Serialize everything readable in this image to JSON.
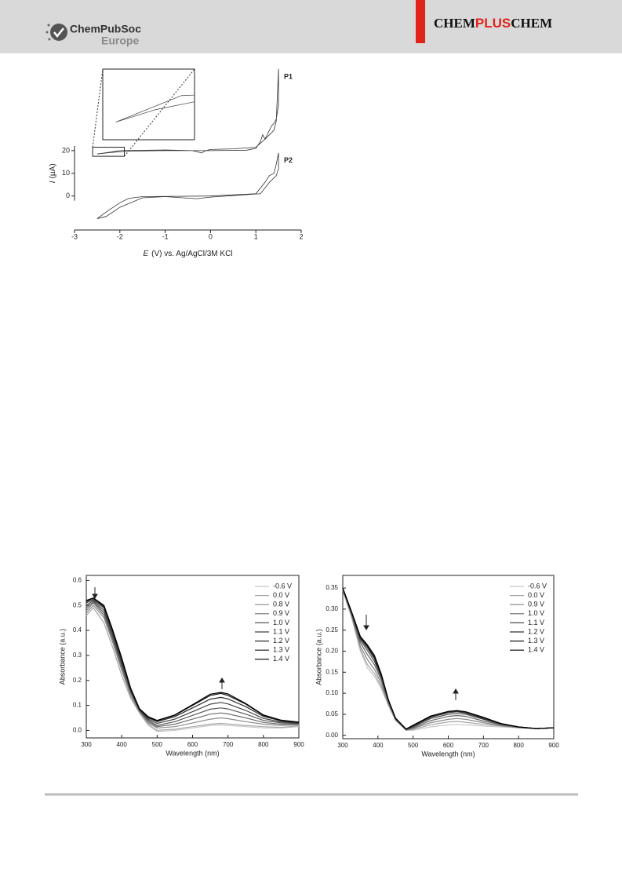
{
  "header": {
    "society": "ChemPubSoc",
    "region": "Europe",
    "journal": [
      "CHEM",
      "PLUS",
      "CHEM"
    ]
  },
  "chart_data": [
    {
      "type": "line",
      "frame": "open",
      "xlabel": [
        "E",
        "(V) vs. Ag/AgCl/3M KCl"
      ],
      "ylabel": [
        "I",
        "(µA)"
      ],
      "xlim": [
        -3,
        2
      ],
      "ylim": [
        -15,
        57
      ],
      "xticks": [
        -3,
        -2,
        -1,
        0,
        1,
        2
      ],
      "yticks": [
        0,
        10,
        20
      ],
      "inset": {
        "xlim": [
          -2.6,
          -1.9
        ],
        "ylim": [
          17.5,
          21.5
        ]
      },
      "series": [
        {
          "name": "P1",
          "color": "#333333",
          "x": [
            -2.5,
            -2.2,
            -1.8,
            -1.0,
            0,
            0.8,
            1.0,
            1.1,
            1.15,
            1.2,
            1.3,
            1.4,
            1.45,
            1.5,
            1.5,
            1.45,
            1.4,
            1.35,
            1.2,
            1.0,
            0.5,
            0,
            -0.1,
            -0.2,
            -0.3,
            -0.4,
            -1.0,
            -2.0,
            -2.5
          ],
          "values": [
            18.5,
            19.2,
            19.8,
            20,
            20,
            20.2,
            21,
            24,
            27,
            25,
            27,
            29,
            33,
            56,
            40,
            34,
            32,
            31,
            25,
            21.5,
            20.8,
            20.5,
            20,
            19,
            19.5,
            20,
            20.3,
            20,
            18.5
          ]
        },
        {
          "name": "P2",
          "color": "#333333",
          "x": [
            -2.5,
            -2.3,
            -2.0,
            -1.8,
            -1.5,
            0,
            1.0,
            1.2,
            1.3,
            1.4,
            1.45,
            1.5,
            1.5,
            1.45,
            1.3,
            1.1,
            0,
            -0.3,
            -1.0,
            -1.5,
            -2.0,
            -2.3,
            -2.5
          ],
          "values": [
            -10,
            -7,
            -3,
            -1,
            -0.3,
            0,
            1,
            6,
            9,
            10,
            14,
            19,
            12,
            9,
            6,
            1,
            -0.5,
            -1.2,
            -0.3,
            -0.8,
            -5,
            -9,
            -10
          ]
        }
      ]
    },
    {
      "type": "line",
      "frame": "box",
      "legend": "upper right",
      "xlabel": "Wavelength (nm)",
      "ylabel": "Absorbance (a.u.)",
      "xlim": [
        300,
        900
      ],
      "ylim": [
        -0.03,
        0.62
      ],
      "xticks": [
        300,
        400,
        500,
        600,
        700,
        800,
        900
      ],
      "yticks": [
        {
          "value": 0,
          "label": "0.0"
        },
        0.1,
        0.2,
        0.3,
        0.4,
        0.5,
        0.6
      ],
      "x": [
        300,
        320,
        350,
        375,
        400,
        425,
        450,
        475,
        500,
        550,
        600,
        650,
        680,
        700,
        750,
        800,
        850,
        900
      ],
      "series": [
        {
          "name": "-0.6 V",
          "color": "#c8c8c8",
          "values": [
            0.46,
            0.49,
            0.43,
            0.33,
            0.22,
            0.13,
            0.07,
            0.02,
            -0.005,
            0.0,
            0.01,
            0.02,
            0.022,
            0.02,
            0.015,
            0.01,
            0.01,
            0.015
          ]
        },
        {
          "name": "0.0 V",
          "color": "#a8a8a8",
          "values": [
            0.46,
            0.49,
            0.43,
            0.33,
            0.22,
            0.13,
            0.07,
            0.025,
            0.0,
            0.005,
            0.015,
            0.025,
            0.028,
            0.026,
            0.02,
            0.015,
            0.012,
            0.018
          ]
        },
        {
          "name": "0.8 V",
          "color": "#8c8c8c",
          "values": [
            0.47,
            0.5,
            0.45,
            0.35,
            0.24,
            0.14,
            0.075,
            0.03,
            0.01,
            0.015,
            0.03,
            0.045,
            0.05,
            0.047,
            0.035,
            0.025,
            0.02,
            0.022
          ]
        },
        {
          "name": "0.9 V",
          "color": "#707070",
          "values": [
            0.48,
            0.51,
            0.46,
            0.36,
            0.25,
            0.15,
            0.078,
            0.035,
            0.015,
            0.025,
            0.045,
            0.065,
            0.07,
            0.066,
            0.05,
            0.032,
            0.025,
            0.025
          ]
        },
        {
          "name": "1.0 V",
          "color": "#585858",
          "values": [
            0.49,
            0.515,
            0.47,
            0.37,
            0.26,
            0.155,
            0.08,
            0.04,
            0.02,
            0.035,
            0.06,
            0.085,
            0.09,
            0.086,
            0.065,
            0.04,
            0.03,
            0.027
          ]
        },
        {
          "name": "1.1 V",
          "color": "#404040",
          "values": [
            0.5,
            0.52,
            0.48,
            0.38,
            0.27,
            0.16,
            0.082,
            0.045,
            0.028,
            0.045,
            0.075,
            0.105,
            0.112,
            0.106,
            0.08,
            0.048,
            0.034,
            0.029
          ]
        },
        {
          "name": "1.2 V",
          "color": "#2a2a2a",
          "values": [
            0.51,
            0.525,
            0.49,
            0.39,
            0.28,
            0.165,
            0.085,
            0.05,
            0.035,
            0.055,
            0.09,
            0.125,
            0.132,
            0.126,
            0.095,
            0.056,
            0.038,
            0.031
          ]
        },
        {
          "name": "1.3 V",
          "color": "#151515",
          "values": [
            0.515,
            0.53,
            0.495,
            0.395,
            0.285,
            0.168,
            0.086,
            0.053,
            0.038,
            0.06,
            0.1,
            0.14,
            0.148,
            0.14,
            0.105,
            0.06,
            0.04,
            0.032
          ]
        },
        {
          "name": "1.4 V",
          "color": "#000000",
          "values": [
            0.52,
            0.53,
            0.5,
            0.4,
            0.29,
            0.17,
            0.087,
            0.055,
            0.04,
            0.062,
            0.103,
            0.145,
            0.152,
            0.146,
            0.108,
            0.062,
            0.041,
            0.033
          ]
        }
      ]
    },
    {
      "type": "line",
      "frame": "box",
      "legend": "upper right",
      "xlabel": "Wavelength (nm)",
      "ylabel": "Absorbance (a.u.)",
      "xlim": [
        300,
        900
      ],
      "ylim": [
        -0.008,
        0.38
      ],
      "xticks": [
        300,
        400,
        500,
        600,
        700,
        800,
        900
      ],
      "yticks": [
        {
          "value": 0,
          "label": "0.00"
        },
        0.05,
        {
          "value": 0.1,
          "label": "0.10"
        },
        0.15,
        {
          "value": 0.2,
          "label": "0.20"
        },
        0.25,
        {
          "value": 0.3,
          "label": "0.30"
        },
        0.35
      ],
      "x": [
        300,
        325,
        350,
        370,
        390,
        410,
        430,
        450,
        480,
        500,
        550,
        600,
        625,
        650,
        700,
        750,
        800,
        850,
        900
      ],
      "series": [
        {
          "name": "-0.6 V",
          "color": "#c8c8c8",
          "values": [
            0.345,
            0.28,
            0.2,
            0.16,
            0.14,
            0.11,
            0.07,
            0.035,
            0.012,
            0.012,
            0.02,
            0.025,
            0.026,
            0.025,
            0.022,
            0.02,
            0.018,
            0.016,
            0.018
          ]
        },
        {
          "name": "0.0 V",
          "color": "#a4a4a4",
          "values": [
            0.345,
            0.282,
            0.205,
            0.168,
            0.147,
            0.115,
            0.072,
            0.036,
            0.012,
            0.014,
            0.025,
            0.032,
            0.033,
            0.031,
            0.026,
            0.022,
            0.018,
            0.016,
            0.018
          ]
        },
        {
          "name": "0.9 V",
          "color": "#848484",
          "values": [
            0.346,
            0.285,
            0.212,
            0.18,
            0.157,
            0.122,
            0.075,
            0.037,
            0.013,
            0.016,
            0.03,
            0.038,
            0.04,
            0.038,
            0.03,
            0.023,
            0.019,
            0.016,
            0.018
          ]
        },
        {
          "name": "1.0 V",
          "color": "#666666",
          "values": [
            0.347,
            0.288,
            0.22,
            0.192,
            0.168,
            0.13,
            0.078,
            0.038,
            0.013,
            0.018,
            0.035,
            0.045,
            0.047,
            0.045,
            0.034,
            0.025,
            0.019,
            0.016,
            0.018
          ]
        },
        {
          "name": "1.1 V",
          "color": "#4a4a4a",
          "values": [
            0.348,
            0.29,
            0.226,
            0.202,
            0.176,
            0.136,
            0.08,
            0.039,
            0.014,
            0.02,
            0.04,
            0.05,
            0.052,
            0.05,
            0.038,
            0.026,
            0.02,
            0.016,
            0.018
          ]
        },
        {
          "name": "1.2 V",
          "color": "#303030",
          "values": [
            0.349,
            0.292,
            0.23,
            0.208,
            0.182,
            0.14,
            0.082,
            0.04,
            0.014,
            0.022,
            0.043,
            0.054,
            0.056,
            0.053,
            0.04,
            0.027,
            0.02,
            0.016,
            0.018
          ]
        },
        {
          "name": "1.3 V",
          "color": "#181818",
          "values": [
            0.35,
            0.293,
            0.233,
            0.212,
            0.186,
            0.142,
            0.083,
            0.04,
            0.015,
            0.023,
            0.045,
            0.056,
            0.058,
            0.055,
            0.042,
            0.028,
            0.02,
            0.016,
            0.018
          ]
        },
        {
          "name": "1.4 V",
          "color": "#000000",
          "values": [
            0.35,
            0.294,
            0.235,
            0.215,
            0.19,
            0.145,
            0.084,
            0.041,
            0.015,
            0.024,
            0.046,
            0.057,
            0.059,
            0.056,
            0.043,
            0.028,
            0.02,
            0.016,
            0.018
          ]
        }
      ]
    }
  ]
}
